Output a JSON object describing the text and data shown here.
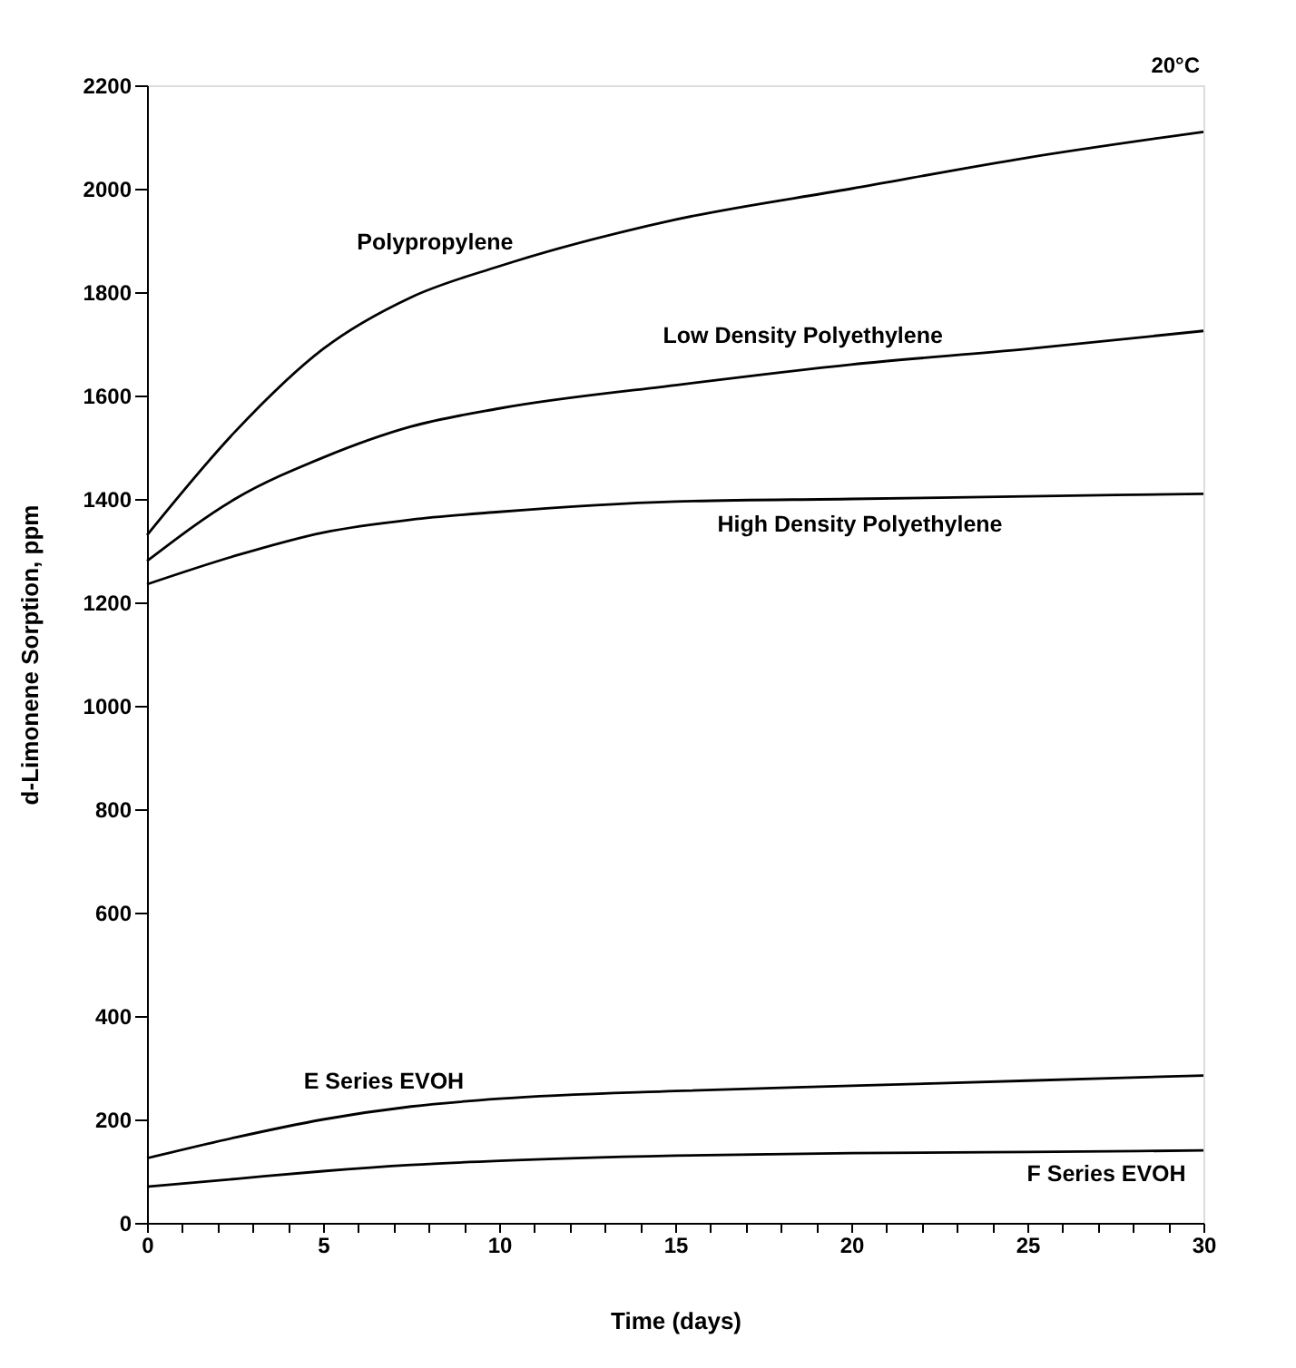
{
  "chart_data": {
    "type": "line",
    "xlabel": "Time (days)",
    "ylabel": "d-Limonene Sorption, ppm",
    "annotations": [
      "20°C"
    ],
    "xlim": [
      0,
      30
    ],
    "ylim": [
      0,
      2200
    ],
    "xticks": [
      0,
      {
        "value": 1,
        "label": null
      },
      {
        "value": 2,
        "label": null
      },
      {
        "value": 3,
        "label": null
      },
      {
        "value": 4,
        "label": null
      },
      5,
      {
        "value": 6,
        "label": null
      },
      {
        "value": 7,
        "label": null
      },
      {
        "value": 8,
        "label": null
      },
      {
        "value": 9,
        "label": null
      },
      10,
      {
        "value": 11,
        "label": null
      },
      {
        "value": 12,
        "label": null
      },
      {
        "value": 13,
        "label": null
      },
      {
        "value": 14,
        "label": null
      },
      15,
      {
        "value": 16,
        "label": null
      },
      {
        "value": 17,
        "label": null
      },
      {
        "value": 18,
        "label": null
      },
      {
        "value": 19,
        "label": null
      },
      20,
      {
        "value": 21,
        "label": null
      },
      {
        "value": 22,
        "label": null
      },
      {
        "value": 23,
        "label": null
      },
      {
        "value": 24,
        "label": null
      },
      25,
      {
        "value": 26,
        "label": null
      },
      {
        "value": 27,
        "label": null
      },
      {
        "value": 28,
        "label": null
      },
      {
        "value": 29,
        "label": null
      },
      30
    ],
    "yticks": [
      0,
      200,
      400,
      600,
      800,
      1000,
      1200,
      1400,
      1600,
      1800,
      2000,
      2200
    ],
    "grid": false,
    "legend": false,
    "marker": "none",
    "line_style": "solid",
    "x": [
      0,
      2.5,
      5,
      7.5,
      10,
      15,
      20,
      25,
      30
    ],
    "series": [
      {
        "name": "Polypropylene",
        "color": "#000000",
        "values": [
          1330,
          1530,
          1690,
          1790,
          1850,
          1940,
          2000,
          2060,
          2110
        ]
      },
      {
        "name": "Low Density Polyethylene",
        "color": "#000000",
        "values": [
          1280,
          1400,
          1480,
          1540,
          1575,
          1620,
          1660,
          1690,
          1725
        ]
      },
      {
        "name": "High Density Polyethylene",
        "color": "#000000",
        "values": [
          1235,
          1290,
          1335,
          1360,
          1375,
          1395,
          1400,
          1405,
          1410
        ]
      },
      {
        "name": "E Series EVOH",
        "color": "#000000",
        "values": [
          125,
          165,
          200,
          225,
          240,
          255,
          265,
          275,
          285
        ]
      },
      {
        "name": "F Series EVOH",
        "color": "#000000",
        "values": [
          70,
          85,
          100,
          112,
          120,
          130,
          135,
          137,
          140
        ]
      }
    ]
  }
}
